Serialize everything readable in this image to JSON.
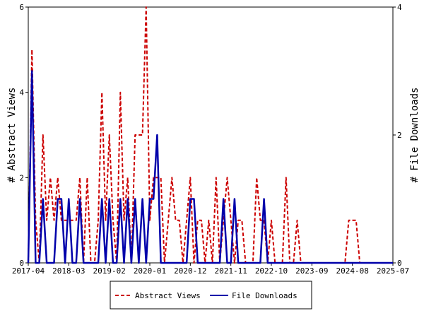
{
  "chart_data": {
    "type": "line",
    "title": "",
    "x_tick_labels": [
      "2017-04",
      "2018-03",
      "2019-02",
      "2020-01",
      "2020-12",
      "2021-11",
      "2022-10",
      "2023-09",
      "2024-08",
      "2025-07"
    ],
    "x_range": [
      "2017-04",
      "2025-07"
    ],
    "y_left": {
      "label": "# Abstract Views",
      "range": [
        0,
        6
      ],
      "ticks": [
        "0",
        "2",
        "4",
        "6"
      ]
    },
    "y_right": {
      "label": "# File Downloads",
      "range": [
        0,
        4
      ],
      "ticks": [
        "0",
        "2",
        "4"
      ]
    },
    "legend": {
      "placement": "bottom-center"
    },
    "series": [
      {
        "name": "Abstract Views",
        "axis": "left",
        "color": "#cc0000",
        "style": "dashed",
        "points": [
          [
            "2017-04-01",
            0
          ],
          [
            "2017-05-01",
            5
          ],
          [
            "2017-06-01",
            1
          ],
          [
            "2017-07-01",
            0
          ],
          [
            "2017-08-01",
            3
          ],
          [
            "2017-09-01",
            1
          ],
          [
            "2017-10-01",
            2
          ],
          [
            "2017-11-01",
            1
          ],
          [
            "2017-12-01",
            2
          ],
          [
            "2018-01-01",
            1
          ],
          [
            "2018-02-01",
            1
          ],
          [
            "2018-03-01",
            1
          ],
          [
            "2018-04-01",
            1
          ],
          [
            "2018-05-01",
            1
          ],
          [
            "2018-06-01",
            2
          ],
          [
            "2018-07-01",
            0
          ],
          [
            "2018-08-01",
            2
          ],
          [
            "2018-09-01",
            0
          ],
          [
            "2018-10-01",
            0
          ],
          [
            "2018-11-01",
            1
          ],
          [
            "2018-12-01",
            4
          ],
          [
            "2019-01-01",
            1
          ],
          [
            "2019-02-01",
            3
          ],
          [
            "2019-03-01",
            1
          ],
          [
            "2019-04-01",
            0
          ],
          [
            "2019-05-01",
            4
          ],
          [
            "2019-06-01",
            1
          ],
          [
            "2019-07-01",
            2
          ],
          [
            "2019-08-01",
            0
          ],
          [
            "2019-09-01",
            3
          ],
          [
            "2019-10-01",
            3
          ],
          [
            "2019-11-01",
            3
          ],
          [
            "2019-12-01",
            6
          ],
          [
            "2020-01-01",
            1
          ],
          [
            "2020-02-01",
            2
          ],
          [
            "2020-03-01",
            2
          ],
          [
            "2020-04-01",
            2
          ],
          [
            "2020-05-01",
            0
          ],
          [
            "2020-06-01",
            1
          ],
          [
            "2020-07-01",
            2
          ],
          [
            "2020-08-01",
            1
          ],
          [
            "2020-09-01",
            1
          ],
          [
            "2020-10-01",
            0
          ],
          [
            "2020-11-01",
            1
          ],
          [
            "2020-12-01",
            2
          ],
          [
            "2021-01-01",
            0
          ],
          [
            "2021-02-01",
            1
          ],
          [
            "2021-03-01",
            1
          ],
          [
            "2021-04-01",
            0
          ],
          [
            "2021-05-01",
            1
          ],
          [
            "2021-06-01",
            0
          ],
          [
            "2021-07-01",
            2
          ],
          [
            "2021-08-01",
            0
          ],
          [
            "2021-09-01",
            1
          ],
          [
            "2021-10-01",
            2
          ],
          [
            "2021-11-01",
            1
          ],
          [
            "2021-12-01",
            0
          ],
          [
            "2022-01-01",
            1
          ],
          [
            "2022-02-01",
            1
          ],
          [
            "2022-03-01",
            0
          ],
          [
            "2022-04-01",
            0
          ],
          [
            "2022-05-01",
            0
          ],
          [
            "2022-06-01",
            2
          ],
          [
            "2022-07-01",
            1
          ],
          [
            "2022-08-01",
            1
          ],
          [
            "2022-09-01",
            0
          ],
          [
            "2022-10-01",
            1
          ],
          [
            "2022-11-01",
            0
          ],
          [
            "2022-12-01",
            0
          ],
          [
            "2023-01-01",
            0
          ],
          [
            "2023-02-01",
            2
          ],
          [
            "2023-03-01",
            0
          ],
          [
            "2023-04-01",
            0
          ],
          [
            "2023-05-01",
            1
          ],
          [
            "2023-06-01",
            0
          ],
          [
            "2023-07-01",
            0
          ],
          [
            "2023-08-01",
            0
          ],
          [
            "2023-09-01",
            0
          ],
          [
            "2023-10-01",
            0
          ],
          [
            "2023-11-01",
            0
          ],
          [
            "2023-12-01",
            0
          ],
          [
            "2024-01-01",
            0
          ],
          [
            "2024-02-01",
            0
          ],
          [
            "2024-03-01",
            0
          ],
          [
            "2024-04-01",
            0
          ],
          [
            "2024-05-01",
            0
          ],
          [
            "2024-06-01",
            0
          ],
          [
            "2024-07-01",
            1
          ],
          [
            "2024-08-01",
            1
          ],
          [
            "2024-09-01",
            1
          ],
          [
            "2024-10-01",
            0
          ],
          [
            "2024-11-01",
            0
          ],
          [
            "2024-12-01",
            0
          ],
          [
            "2025-01-01",
            0
          ],
          [
            "2025-02-01",
            0
          ],
          [
            "2025-03-01",
            0
          ],
          [
            "2025-04-01",
            0
          ],
          [
            "2025-05-01",
            0
          ],
          [
            "2025-06-01",
            0
          ],
          [
            "2025-07-01",
            0
          ]
        ]
      },
      {
        "name": "File Downloads",
        "axis": "right",
        "color": "#0000aa",
        "style": "solid",
        "points": [
          [
            "2017-04-01",
            0
          ],
          [
            "2017-05-01",
            3
          ],
          [
            "2017-06-01",
            0
          ],
          [
            "2017-07-01",
            0
          ],
          [
            "2017-08-01",
            1
          ],
          [
            "2017-09-01",
            0
          ],
          [
            "2017-10-01",
            0
          ],
          [
            "2017-11-01",
            0
          ],
          [
            "2017-12-01",
            1
          ],
          [
            "2018-01-01",
            1
          ],
          [
            "2018-02-01",
            0
          ],
          [
            "2018-03-01",
            1
          ],
          [
            "2018-04-01",
            0
          ],
          [
            "2018-05-01",
            0
          ],
          [
            "2018-06-01",
            1
          ],
          [
            "2018-07-01",
            0
          ],
          [
            "2018-08-01",
            0
          ],
          [
            "2018-09-01",
            0
          ],
          [
            "2018-10-01",
            0
          ],
          [
            "2018-11-01",
            0
          ],
          [
            "2018-12-01",
            1
          ],
          [
            "2019-01-01",
            0
          ],
          [
            "2019-02-01",
            1
          ],
          [
            "2019-03-01",
            0
          ],
          [
            "2019-04-01",
            0
          ],
          [
            "2019-05-01",
            1
          ],
          [
            "2019-06-01",
            0
          ],
          [
            "2019-07-01",
            1
          ],
          [
            "2019-08-01",
            0
          ],
          [
            "2019-09-01",
            1
          ],
          [
            "2019-10-01",
            0
          ],
          [
            "2019-11-01",
            1
          ],
          [
            "2019-12-01",
            0
          ],
          [
            "2020-01-01",
            1
          ],
          [
            "2020-02-01",
            1
          ],
          [
            "2020-03-01",
            2
          ],
          [
            "2020-04-01",
            0
          ],
          [
            "2020-05-01",
            0
          ],
          [
            "2020-06-01",
            0
          ],
          [
            "2020-07-01",
            0
          ],
          [
            "2020-08-01",
            0
          ],
          [
            "2020-09-01",
            0
          ],
          [
            "2020-10-01",
            0
          ],
          [
            "2020-11-01",
            0
          ],
          [
            "2020-12-01",
            1
          ],
          [
            "2021-01-01",
            1
          ],
          [
            "2021-02-01",
            0
          ],
          [
            "2021-03-01",
            0
          ],
          [
            "2021-04-01",
            0
          ],
          [
            "2021-05-01",
            0
          ],
          [
            "2021-06-01",
            0
          ],
          [
            "2021-07-01",
            0
          ],
          [
            "2021-08-01",
            0
          ],
          [
            "2021-09-01",
            1
          ],
          [
            "2021-10-01",
            0
          ],
          [
            "2021-11-01",
            0
          ],
          [
            "2021-12-01",
            1
          ],
          [
            "2022-01-01",
            0
          ],
          [
            "2022-02-01",
            0
          ],
          [
            "2022-03-01",
            0
          ],
          [
            "2022-04-01",
            0
          ],
          [
            "2022-05-01",
            0
          ],
          [
            "2022-06-01",
            0
          ],
          [
            "2022-07-01",
            0
          ],
          [
            "2022-08-01",
            1
          ],
          [
            "2022-09-01",
            0
          ],
          [
            "2022-10-01",
            0
          ],
          [
            "2022-11-01",
            0
          ],
          [
            "2022-12-01",
            0
          ],
          [
            "2023-01-01",
            0
          ],
          [
            "2023-02-01",
            0
          ],
          [
            "2023-03-01",
            0
          ],
          [
            "2023-04-01",
            0
          ],
          [
            "2023-05-01",
            0
          ],
          [
            "2023-06-01",
            0
          ],
          [
            "2023-07-01",
            0
          ],
          [
            "2023-08-01",
            0
          ],
          [
            "2023-09-01",
            0
          ],
          [
            "2023-10-01",
            0
          ],
          [
            "2023-11-01",
            0
          ],
          [
            "2023-12-01",
            0
          ],
          [
            "2024-01-01",
            0
          ],
          [
            "2024-02-01",
            0
          ],
          [
            "2024-03-01",
            0
          ],
          [
            "2024-04-01",
            0
          ],
          [
            "2024-05-01",
            0
          ],
          [
            "2024-06-01",
            0
          ],
          [
            "2024-07-01",
            0
          ],
          [
            "2024-08-01",
            0
          ],
          [
            "2024-09-01",
            0
          ],
          [
            "2024-10-01",
            0
          ],
          [
            "2024-11-01",
            0
          ],
          [
            "2024-12-01",
            0
          ],
          [
            "2025-01-01",
            0
          ],
          [
            "2025-02-01",
            0
          ],
          [
            "2025-03-01",
            0
          ],
          [
            "2025-04-01",
            0
          ],
          [
            "2025-05-01",
            0
          ],
          [
            "2025-06-01",
            0
          ],
          [
            "2025-07-01",
            0
          ]
        ]
      }
    ]
  }
}
